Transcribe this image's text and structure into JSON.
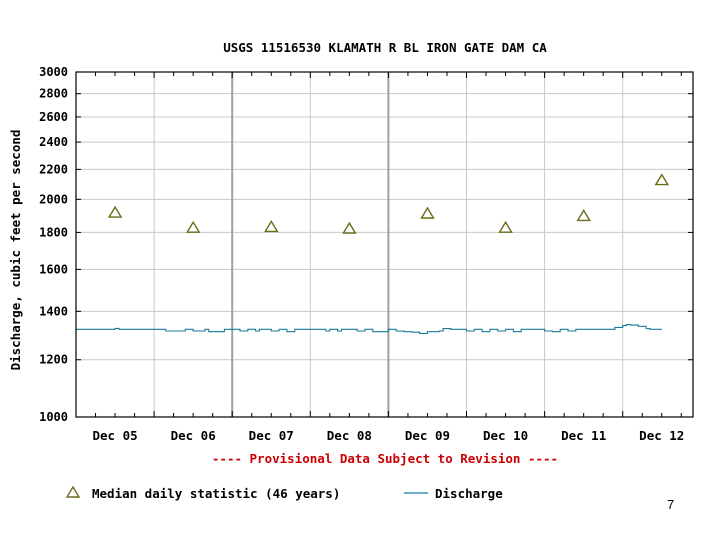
{
  "chart_data": {
    "type": "line",
    "title": "USGS 11516530 KLAMATH R BL IRON GATE DAM CA",
    "xlabel": "",
    "ylabel": "Discharge, cubic feet per second",
    "y_scale": "log",
    "ylim": [
      1000,
      3000
    ],
    "xlim": [
      -0.5,
      7.4
    ],
    "y_ticks": [
      1000,
      1200,
      1400,
      1600,
      1800,
      2000,
      2200,
      2400,
      2600,
      2800,
      3000
    ],
    "y_tick_labels": [
      "1000",
      "1200",
      "1400",
      "1600",
      "1800",
      "2000",
      "2200",
      "2400",
      "2600",
      "2800",
      "3000"
    ],
    "categories": [
      "Dec 05",
      "Dec 06",
      "Dec 07",
      "Dec 08",
      "Dec 09",
      "Dec 10",
      "Dec 11",
      "Dec 12"
    ],
    "grid": true,
    "annotation": "---- Provisional Data Subject to Revision ----",
    "series": [
      {
        "name": "Median daily statistic (46 years)",
        "marker": "triangle",
        "color": "#6b6b1a",
        "x": [
          0,
          1,
          2,
          3,
          4,
          5,
          6,
          7
        ],
        "values": [
          1920,
          1830,
          1835,
          1825,
          1915,
          1830,
          1900,
          2130
        ]
      },
      {
        "name": "Discharge",
        "marker": "line",
        "color": "#1a7a9a",
        "x": [
          -0.5,
          -0.05,
          0,
          0.05,
          0.6,
          0.65,
          0.9,
          1.0,
          1.15,
          1.2,
          1.4,
          1.45,
          1.6,
          1.7,
          1.8,
          1.85,
          2.0,
          2.1,
          2.2,
          2.3,
          2.6,
          2.7,
          2.75,
          2.85,
          2.9,
          3.1,
          3.2,
          3.3,
          3.5,
          3.6,
          3.7,
          3.8,
          3.9,
          4.0,
          4.15,
          4.2,
          4.3,
          4.35,
          4.5,
          4.6,
          4.7,
          4.8,
          4.9,
          5.0,
          5.1,
          5.2,
          5.4,
          5.5,
          5.6,
          5.7,
          5.8,
          5.9,
          6.0,
          6.1,
          6.2,
          6.4,
          6.5,
          6.55,
          6.6,
          6.7,
          6.8,
          6.85,
          6.95,
          7.0
        ],
        "values": [
          1322,
          1322,
          1326,
          1322,
          1322,
          1315,
          1322,
          1315,
          1322,
          1312,
          1322,
          1322,
          1315,
          1322,
          1315,
          1322,
          1315,
          1322,
          1312,
          1322,
          1322,
          1315,
          1322,
          1315,
          1322,
          1315,
          1322,
          1312,
          1322,
          1315,
          1312,
          1310,
          1305,
          1312,
          1315,
          1325,
          1322,
          1322,
          1315,
          1322,
          1312,
          1322,
          1315,
          1322,
          1312,
          1322,
          1322,
          1315,
          1312,
          1322,
          1315,
          1322,
          1322,
          1322,
          1322,
          1330,
          1338,
          1342,
          1340,
          1335,
          1325,
          1322,
          1322,
          1322
        ]
      }
    ]
  },
  "page_number": "7"
}
